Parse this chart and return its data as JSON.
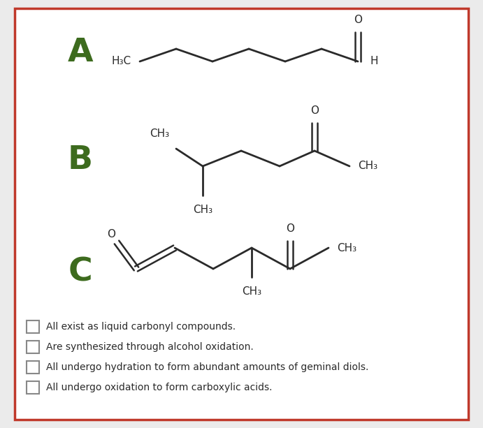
{
  "bg_color": "#ebebeb",
  "panel_color": "#ffffff",
  "border_color": "#c0392b",
  "label_color": "#3d6b1e",
  "text_color": "#2a2a2a",
  "bond_color": "#2a2a2a",
  "options": [
    "All exist as liquid carbonyl compounds.",
    "Are synthesized through alcohol oxidation.",
    "All undergo hydration to form abundant amounts of geminal diols.",
    "All undergo oxidation to form carboxylic acids."
  ]
}
